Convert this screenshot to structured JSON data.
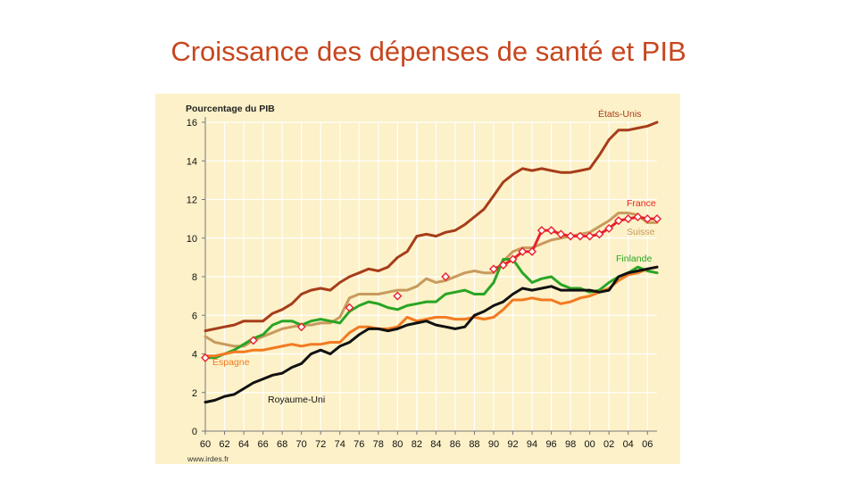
{
  "slide": {
    "title": "Croissance des dépenses de santé et PIB"
  },
  "chart_data": {
    "type": "line",
    "title": "",
    "ylabel": "Pourcentage du PIB",
    "xlabel": "",
    "source": "www.irdes.fr",
    "ylim": [
      0,
      16
    ],
    "xlim": [
      1960,
      2007
    ],
    "yticks": [
      "0",
      "2",
      "4",
      "6",
      "8",
      "10",
      "12",
      "14",
      "16"
    ],
    "xticks": [
      "60",
      "62",
      "64",
      "66",
      "68",
      "70",
      "72",
      "74",
      "76",
      "78",
      "80",
      "82",
      "84",
      "86",
      "88",
      "90",
      "92",
      "94",
      "96",
      "98",
      "00",
      "02",
      "04",
      "06"
    ],
    "grid": true,
    "colors": {
      "background": "#fcf1c8",
      "grid": "#ffffff",
      "axis": "#777777",
      "etats_unis": "#a63d1a",
      "france": "#e8212a",
      "suisse": "#c89a5e",
      "finlande": "#2aa524",
      "espagne": "#f27a22",
      "royaume_uni": "#111111",
      "marker_fill": "#ffffff",
      "marker_stroke": "#e8212a"
    },
    "series": [
      {
        "key": "etats_unis",
        "name": "États-Unis",
        "x": [
          1960,
          1961,
          1962,
          1963,
          1964,
          1965,
          1966,
          1967,
          1968,
          1969,
          1970,
          1971,
          1972,
          1973,
          1974,
          1975,
          1976,
          1977,
          1978,
          1979,
          1980,
          1981,
          1982,
          1983,
          1984,
          1985,
          1986,
          1987,
          1988,
          1989,
          1990,
          1991,
          1992,
          1993,
          1994,
          1995,
          1996,
          1997,
          1998,
          1999,
          2000,
          2001,
          2002,
          2003,
          2004,
          2005,
          2006,
          2007
        ],
        "values": [
          5.2,
          5.3,
          5.4,
          5.5,
          5.7,
          5.7,
          5.7,
          6.1,
          6.3,
          6.6,
          7.1,
          7.3,
          7.4,
          7.3,
          7.7,
          8.0,
          8.2,
          8.4,
          8.3,
          8.5,
          9.0,
          9.3,
          10.1,
          10.2,
          10.1,
          10.3,
          10.4,
          10.7,
          11.1,
          11.5,
          12.2,
          12.9,
          13.3,
          13.6,
          13.5,
          13.6,
          13.5,
          13.4,
          13.4,
          13.5,
          13.6,
          14.3,
          15.1,
          15.6,
          15.6,
          15.7,
          15.8,
          16.0
        ]
      },
      {
        "key": "suisse",
        "name": "Suisse",
        "x": [
          1960,
          1961,
          1962,
          1963,
          1964,
          1965,
          1966,
          1967,
          1968,
          1969,
          1970,
          1971,
          1972,
          1973,
          1974,
          1975,
          1976,
          1977,
          1978,
          1979,
          1980,
          1981,
          1982,
          1983,
          1984,
          1985,
          1986,
          1987,
          1988,
          1989,
          1990,
          1991,
          1992,
          1993,
          1994,
          1995,
          1996,
          1997,
          1998,
          1999,
          2000,
          2001,
          2002,
          2003,
          2004,
          2005,
          2006,
          2007
        ],
        "values": [
          4.9,
          4.6,
          4.5,
          4.4,
          4.4,
          4.7,
          4.9,
          5.1,
          5.3,
          5.4,
          5.5,
          5.5,
          5.6,
          5.6,
          5.9,
          6.9,
          7.1,
          7.1,
          7.1,
          7.2,
          7.3,
          7.3,
          7.5,
          7.9,
          7.7,
          7.8,
          8.0,
          8.2,
          8.3,
          8.2,
          8.2,
          8.8,
          9.3,
          9.5,
          9.5,
          9.7,
          9.9,
          10.0,
          10.1,
          10.2,
          10.3,
          10.6,
          10.9,
          11.3,
          11.3,
          11.2,
          10.8,
          10.8
        ]
      },
      {
        "key": "france",
        "name": "France",
        "x": [
          1990,
          1991,
          1992,
          1993,
          1994,
          1995,
          1996,
          1997,
          1998,
          1999,
          2000,
          2001,
          2002,
          2003,
          2004,
          2005,
          2006,
          2007
        ],
        "values": [
          8.4,
          8.6,
          8.9,
          9.3,
          9.3,
          10.4,
          10.4,
          10.2,
          10.1,
          10.1,
          10.1,
          10.2,
          10.5,
          10.9,
          11.0,
          11.1,
          11.0,
          11.0
        ],
        "markers": [
          {
            "x": 1960,
            "y": 3.8
          },
          {
            "x": 1965,
            "y": 4.7
          },
          {
            "x": 1970,
            "y": 5.4
          },
          {
            "x": 1975,
            "y": 6.4
          },
          {
            "x": 1980,
            "y": 7.0
          },
          {
            "x": 1985,
            "y": 8.0
          },
          {
            "x": 1990,
            "y": 8.4
          },
          {
            "x": 1991,
            "y": 8.6
          },
          {
            "x": 1992,
            "y": 8.9
          },
          {
            "x": 1993,
            "y": 9.3
          },
          {
            "x": 1994,
            "y": 9.3
          },
          {
            "x": 1995,
            "y": 10.4
          },
          {
            "x": 1996,
            "y": 10.4
          },
          {
            "x": 1997,
            "y": 10.2
          },
          {
            "x": 1998,
            "y": 10.1
          },
          {
            "x": 1999,
            "y": 10.1
          },
          {
            "x": 2000,
            "y": 10.1
          },
          {
            "x": 2001,
            "y": 10.2
          },
          {
            "x": 2002,
            "y": 10.5
          },
          {
            "x": 2003,
            "y": 10.9
          },
          {
            "x": 2004,
            "y": 11.0
          },
          {
            "x": 2005,
            "y": 11.1
          },
          {
            "x": 2006,
            "y": 11.0
          },
          {
            "x": 2007,
            "y": 11.0
          }
        ]
      },
      {
        "key": "finlande",
        "name": "Finlande",
        "x": [
          1960,
          1961,
          1962,
          1963,
          1964,
          1965,
          1966,
          1967,
          1968,
          1969,
          1970,
          1971,
          1972,
          1973,
          1974,
          1975,
          1976,
          1977,
          1978,
          1979,
          1980,
          1981,
          1982,
          1983,
          1984,
          1985,
          1986,
          1987,
          1988,
          1989,
          1990,
          1991,
          1992,
          1993,
          1994,
          1995,
          1996,
          1997,
          1998,
          1999,
          2000,
          2001,
          2002,
          2003,
          2004,
          2005,
          2006,
          2007
        ],
        "values": [
          3.8,
          3.8,
          4.0,
          4.2,
          4.5,
          4.8,
          5.0,
          5.5,
          5.7,
          5.7,
          5.5,
          5.7,
          5.8,
          5.7,
          5.6,
          6.2,
          6.5,
          6.7,
          6.6,
          6.4,
          6.3,
          6.5,
          6.6,
          6.7,
          6.7,
          7.1,
          7.2,
          7.3,
          7.1,
          7.1,
          7.7,
          8.9,
          8.9,
          8.2,
          7.7,
          7.9,
          8.0,
          7.6,
          7.4,
          7.4,
          7.2,
          7.3,
          7.7,
          8.0,
          8.2,
          8.5,
          8.3,
          8.2
        ]
      },
      {
        "key": "espagne",
        "name": "Espagne",
        "x": [
          1960,
          1961,
          1962,
          1963,
          1964,
          1965,
          1966,
          1967,
          1968,
          1969,
          1970,
          1971,
          1972,
          1973,
          1974,
          1975,
          1976,
          1977,
          1978,
          1979,
          1980,
          1981,
          1982,
          1983,
          1984,
          1985,
          1986,
          1987,
          1988,
          1989,
          1990,
          1991,
          1992,
          1993,
          1994,
          1995,
          1996,
          1997,
          1998,
          1999,
          2000,
          2001,
          2002,
          2003,
          2004,
          2005,
          2006,
          2007
        ],
        "values": [
          3.9,
          3.9,
          4.0,
          4.1,
          4.1,
          4.2,
          4.2,
          4.3,
          4.4,
          4.5,
          4.4,
          4.5,
          4.5,
          4.6,
          4.6,
          5.1,
          5.4,
          5.4,
          5.3,
          5.3,
          5.4,
          5.9,
          5.7,
          5.8,
          5.9,
          5.9,
          5.8,
          5.8,
          5.9,
          5.8,
          5.9,
          6.3,
          6.8,
          6.8,
          6.9,
          6.8,
          6.8,
          6.6,
          6.7,
          6.9,
          7.0,
          7.2,
          7.4,
          7.8,
          8.1,
          8.2,
          8.4,
          8.5
        ]
      },
      {
        "key": "royaume_uni",
        "name": "Royaume-Uni",
        "x": [
          1960,
          1961,
          1962,
          1963,
          1964,
          1965,
          1966,
          1967,
          1968,
          1969,
          1970,
          1971,
          1972,
          1973,
          1974,
          1975,
          1976,
          1977,
          1978,
          1979,
          1980,
          1981,
          1982,
          1983,
          1984,
          1985,
          1986,
          1987,
          1988,
          1989,
          1990,
          1991,
          1992,
          1993,
          1994,
          1995,
          1996,
          1997,
          1998,
          1999,
          2000,
          2001,
          2002,
          2003,
          2004,
          2005,
          2006,
          2007
        ],
        "values": [
          1.5,
          1.6,
          1.8,
          1.9,
          2.2,
          2.5,
          2.7,
          2.9,
          3.0,
          3.3,
          3.5,
          4.0,
          4.2,
          4.0,
          4.4,
          4.6,
          5.0,
          5.3,
          5.3,
          5.2,
          5.3,
          5.5,
          5.6,
          5.7,
          5.5,
          5.4,
          5.3,
          5.4,
          6.0,
          6.2,
          6.5,
          6.7,
          7.1,
          7.4,
          7.3,
          7.4,
          7.5,
          7.3,
          7.3,
          7.3,
          7.3,
          7.2,
          7.3,
          8.0,
          8.2,
          8.3,
          8.4,
          8.5
        ]
      }
    ],
    "annotations": [
      {
        "key": "etats_unis",
        "text": "États-Unis"
      },
      {
        "key": "france",
        "text": "France"
      },
      {
        "key": "suisse",
        "text": "Suisse"
      },
      {
        "key": "finlande",
        "text": "Finlande"
      },
      {
        "key": "espagne",
        "text": "Espagne"
      },
      {
        "key": "royaume_uni",
        "text": "Royaume-Uni"
      }
    ]
  }
}
